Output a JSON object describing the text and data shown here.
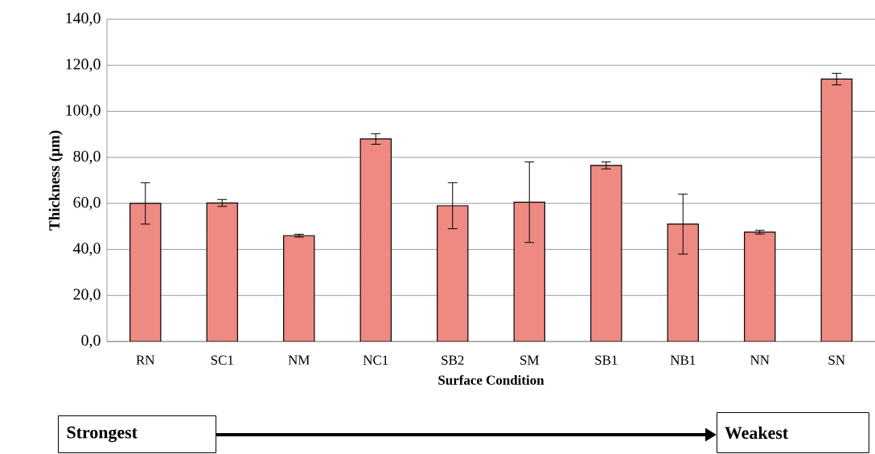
{
  "chart_data": {
    "type": "bar",
    "xlabel": "Surface Condition",
    "ylabel": "Thickness (µm)",
    "categories": [
      "RN",
      "SC1",
      "NM",
      "NC1",
      "SB2",
      "SM",
      "SB1",
      "NB1",
      "NN",
      "SN"
    ],
    "values": [
      60,
      60.2,
      46,
      88,
      59,
      60.5,
      76.5,
      51,
      47.5,
      114
    ],
    "errors": [
      9,
      1.5,
      0.6,
      2.3,
      10,
      17.5,
      1.5,
      13,
      0.8,
      2.5
    ],
    "color": "#ee8a82",
    "ylim": [
      0,
      140
    ],
    "yticks": [
      {
        "value": 0,
        "label": "0,0"
      },
      {
        "value": 20,
        "label": "20,0"
      },
      {
        "value": 40,
        "label": "40,0"
      },
      {
        "value": 60,
        "label": "60,0"
      },
      {
        "value": 80,
        "label": "80,0"
      },
      {
        "value": 100,
        "label": "100,0"
      },
      {
        "value": 120,
        "label": "120,0"
      },
      {
        "value": 140,
        "label": "140,0"
      }
    ],
    "grid": "y",
    "annotations": [
      "Strongest",
      "Weakest"
    ]
  }
}
